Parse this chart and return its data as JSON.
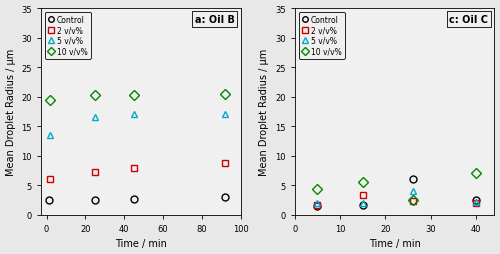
{
  "panel_a": {
    "title": "a: Oil B",
    "xlabel": "Time / min",
    "ylabel": "Mean Droplet Radius / μm",
    "ylim": [
      0,
      35
    ],
    "xlim": [
      -3,
      100
    ],
    "xticks": [
      0,
      20,
      40,
      60,
      80,
      100
    ],
    "yticks": [
      0,
      5,
      10,
      15,
      20,
      25,
      30,
      35
    ],
    "series": {
      "Control": {
        "x": [
          1,
          25,
          45,
          92
        ],
        "y": [
          2.5,
          2.5,
          2.7,
          3.0
        ],
        "color": "black",
        "marker": "o",
        "markersize": 5
      },
      "2 v/v%": {
        "x": [
          2,
          25,
          45,
          92
        ],
        "y": [
          6.1,
          7.2,
          8.0,
          8.7
        ],
        "color": "#cc0000",
        "marker": "s",
        "markersize": 5
      },
      "5 v/v%": {
        "x": [
          2,
          25,
          45,
          92
        ],
        "y": [
          13.5,
          16.5,
          17.0,
          17.0
        ],
        "color": "#00aacc",
        "marker": "^",
        "markersize": 5
      },
      "10 v/v%": {
        "x": [
          2,
          25,
          45,
          92
        ],
        "y": [
          19.5,
          20.3,
          20.3,
          20.5
        ],
        "color": "#008800",
        "marker": "D",
        "markersize": 5
      }
    }
  },
  "panel_c": {
    "title": "c: Oil C",
    "xlabel": "Time / min",
    "ylabel": "Mean Droplet Radius / μm",
    "ylim": [
      0,
      35
    ],
    "xlim": [
      2,
      44
    ],
    "xticks": [
      0,
      10,
      20,
      30,
      40
    ],
    "yticks": [
      0,
      5,
      10,
      15,
      20,
      25,
      30,
      35
    ],
    "series": {
      "Control": {
        "x": [
          5,
          15,
          26,
          40
        ],
        "y": [
          1.5,
          1.7,
          6.0,
          2.5
        ],
        "color": "black",
        "marker": "o",
        "markersize": 5
      },
      "2 v/v%": {
        "x": [
          5,
          15,
          26,
          40
        ],
        "y": [
          1.7,
          3.3,
          2.3,
          2.0
        ],
        "color": "#cc0000",
        "marker": "s",
        "markersize": 5
      },
      "5 v/v%": {
        "x": [
          5,
          15,
          26,
          40
        ],
        "y": [
          2.0,
          2.0,
          4.0,
          2.2
        ],
        "color": "#00aacc",
        "marker": "^",
        "markersize": 5
      },
      "10 v/v%": {
        "x": [
          5,
          15,
          26,
          40
        ],
        "y": [
          4.3,
          5.5,
          2.5,
          7.0
        ],
        "color": "#008800",
        "marker": "D",
        "markersize": 5
      }
    }
  },
  "legend_labels": [
    "Control",
    "2 v/v%",
    "5 v/v%",
    "10 v/v%"
  ],
  "legend_colors": [
    "black",
    "#cc0000",
    "#00aacc",
    "#008800"
  ],
  "legend_markers": [
    "o",
    "s",
    "^",
    "D"
  ],
  "bg_color": "#f0f0f0",
  "fig_bg": "#e8e8e8"
}
